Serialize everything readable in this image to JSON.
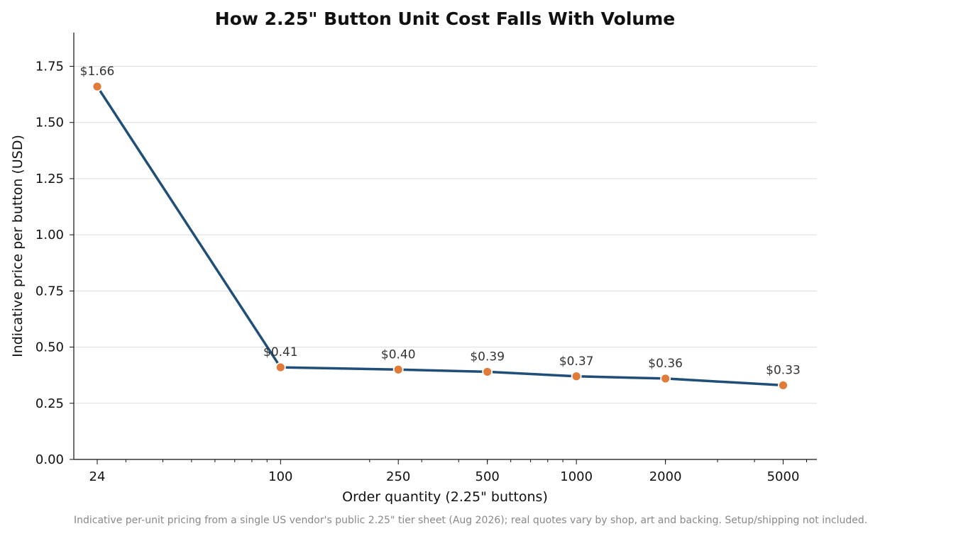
{
  "chart_data": {
    "type": "line",
    "title": "How 2.25\" Button Unit Cost Falls With Volume",
    "xlabel": "Order quantity (2.25\" buttons)",
    "ylabel": "Indicative price per button (USD)",
    "x_scale": "log",
    "xlim": [
      20,
      6500
    ],
    "ylim": [
      0,
      1.9
    ],
    "x_ticks": [
      24,
      100,
      250,
      500,
      1000,
      2000,
      5000
    ],
    "x_tick_labels": [
      "24",
      "100",
      "250",
      "500",
      "1000",
      "2000",
      "5000"
    ],
    "y_ticks": [
      0,
      0.25,
      0.5,
      0.75,
      1.0,
      1.25,
      1.5,
      1.75
    ],
    "y_tick_labels": [
      "0.00",
      "0.25",
      "0.50",
      "0.75",
      "1.00",
      "1.25",
      "1.50",
      "1.75"
    ],
    "grid": "horizontal",
    "series": [
      {
        "x": [
          24,
          100,
          250,
          500,
          1000,
          2000,
          5000
        ],
        "y": [
          1.66,
          0.41,
          0.4,
          0.39,
          0.37,
          0.36,
          0.33
        ],
        "labels": [
          "$1.66",
          "$0.41",
          "$0.40",
          "$0.39",
          "$0.37",
          "$0.36",
          "$0.33"
        ]
      }
    ],
    "colors": {
      "line": "#1f4e79",
      "marker": "#e07b39"
    },
    "footnote": "Indicative per-unit pricing from a single US vendor's public 2.25\" tier sheet (Aug 2026); real quotes vary by shop, art and backing. Setup/shipping not included."
  }
}
